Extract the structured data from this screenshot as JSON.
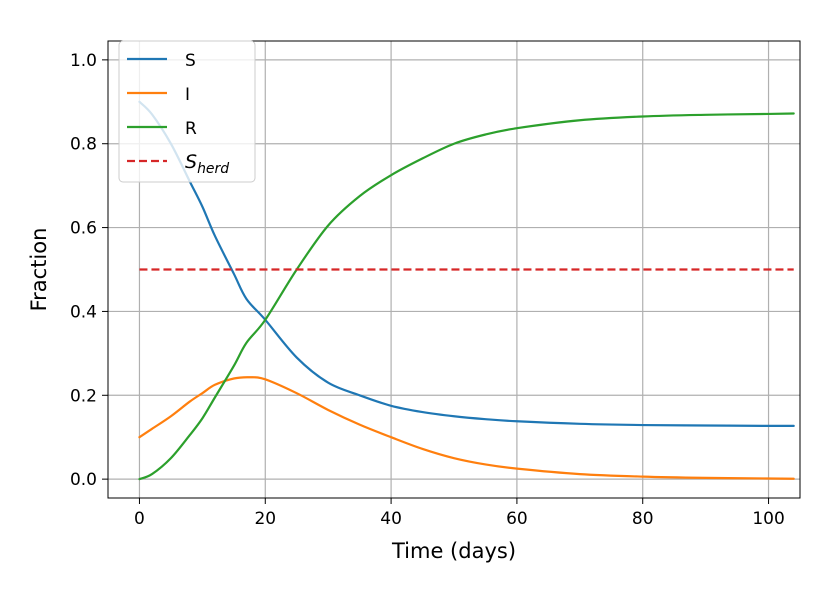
{
  "chart_data": {
    "type": "line",
    "xlabel": "Time (days)",
    "ylabel": "Fraction",
    "xlim": [
      -5,
      105
    ],
    "ylim": [
      -0.045,
      1.045
    ],
    "xticks": [
      0,
      20,
      40,
      60,
      80,
      100
    ],
    "yticks": [
      0.0,
      0.2,
      0.4,
      0.6,
      0.8,
      1.0
    ],
    "xtick_labels": [
      "0",
      "20",
      "40",
      "60",
      "80",
      "100"
    ],
    "ytick_labels": [
      "0.0",
      "0.2",
      "0.4",
      "0.6",
      "0.8",
      "1.0"
    ],
    "grid": true,
    "legend_position": "top-left",
    "series": [
      {
        "name": "S",
        "color": "#1f77b4",
        "style": "solid",
        "x": [
          0,
          2,
          5,
          8,
          10,
          12,
          15,
          17,
          20,
          25,
          30,
          35,
          40,
          45,
          50,
          55,
          60,
          70,
          80,
          90,
          100,
          104
        ],
        "y": [
          0.9,
          0.87,
          0.8,
          0.71,
          0.65,
          0.58,
          0.49,
          0.43,
          0.38,
          0.29,
          0.23,
          0.2,
          0.175,
          0.16,
          0.15,
          0.143,
          0.138,
          0.132,
          0.129,
          0.128,
          0.127,
          0.127
        ]
      },
      {
        "name": "I",
        "color": "#ff7f0e",
        "style": "solid",
        "x": [
          0,
          2,
          5,
          8,
          10,
          12,
          15,
          17.5,
          20,
          25,
          30,
          35,
          40,
          45,
          50,
          55,
          60,
          70,
          80,
          90,
          100,
          104
        ],
        "y": [
          0.1,
          0.12,
          0.15,
          0.185,
          0.205,
          0.225,
          0.24,
          0.243,
          0.238,
          0.205,
          0.165,
          0.13,
          0.1,
          0.072,
          0.05,
          0.035,
          0.025,
          0.012,
          0.006,
          0.003,
          0.0015,
          0.001
        ]
      },
      {
        "name": "R",
        "color": "#2ca02c",
        "style": "solid",
        "x": [
          0,
          2,
          5,
          8,
          10,
          12,
          15,
          17,
          20,
          25,
          30,
          35,
          40,
          45,
          50,
          55,
          60,
          70,
          80,
          90,
          100,
          104
        ],
        "y": [
          0.0,
          0.012,
          0.05,
          0.105,
          0.145,
          0.195,
          0.27,
          0.325,
          0.38,
          0.5,
          0.605,
          0.675,
          0.725,
          0.765,
          0.8,
          0.822,
          0.837,
          0.856,
          0.865,
          0.869,
          0.871,
          0.872
        ]
      },
      {
        "name": "S_herd",
        "color": "#d62728",
        "style": "dashed",
        "x": [
          0,
          104
        ],
        "y": [
          0.5,
          0.5
        ]
      }
    ],
    "legend": [
      {
        "main": "S",
        "sub": ""
      },
      {
        "main": "I",
        "sub": ""
      },
      {
        "main": "R",
        "sub": ""
      },
      {
        "main": "S",
        "sub": "herd"
      }
    ]
  }
}
